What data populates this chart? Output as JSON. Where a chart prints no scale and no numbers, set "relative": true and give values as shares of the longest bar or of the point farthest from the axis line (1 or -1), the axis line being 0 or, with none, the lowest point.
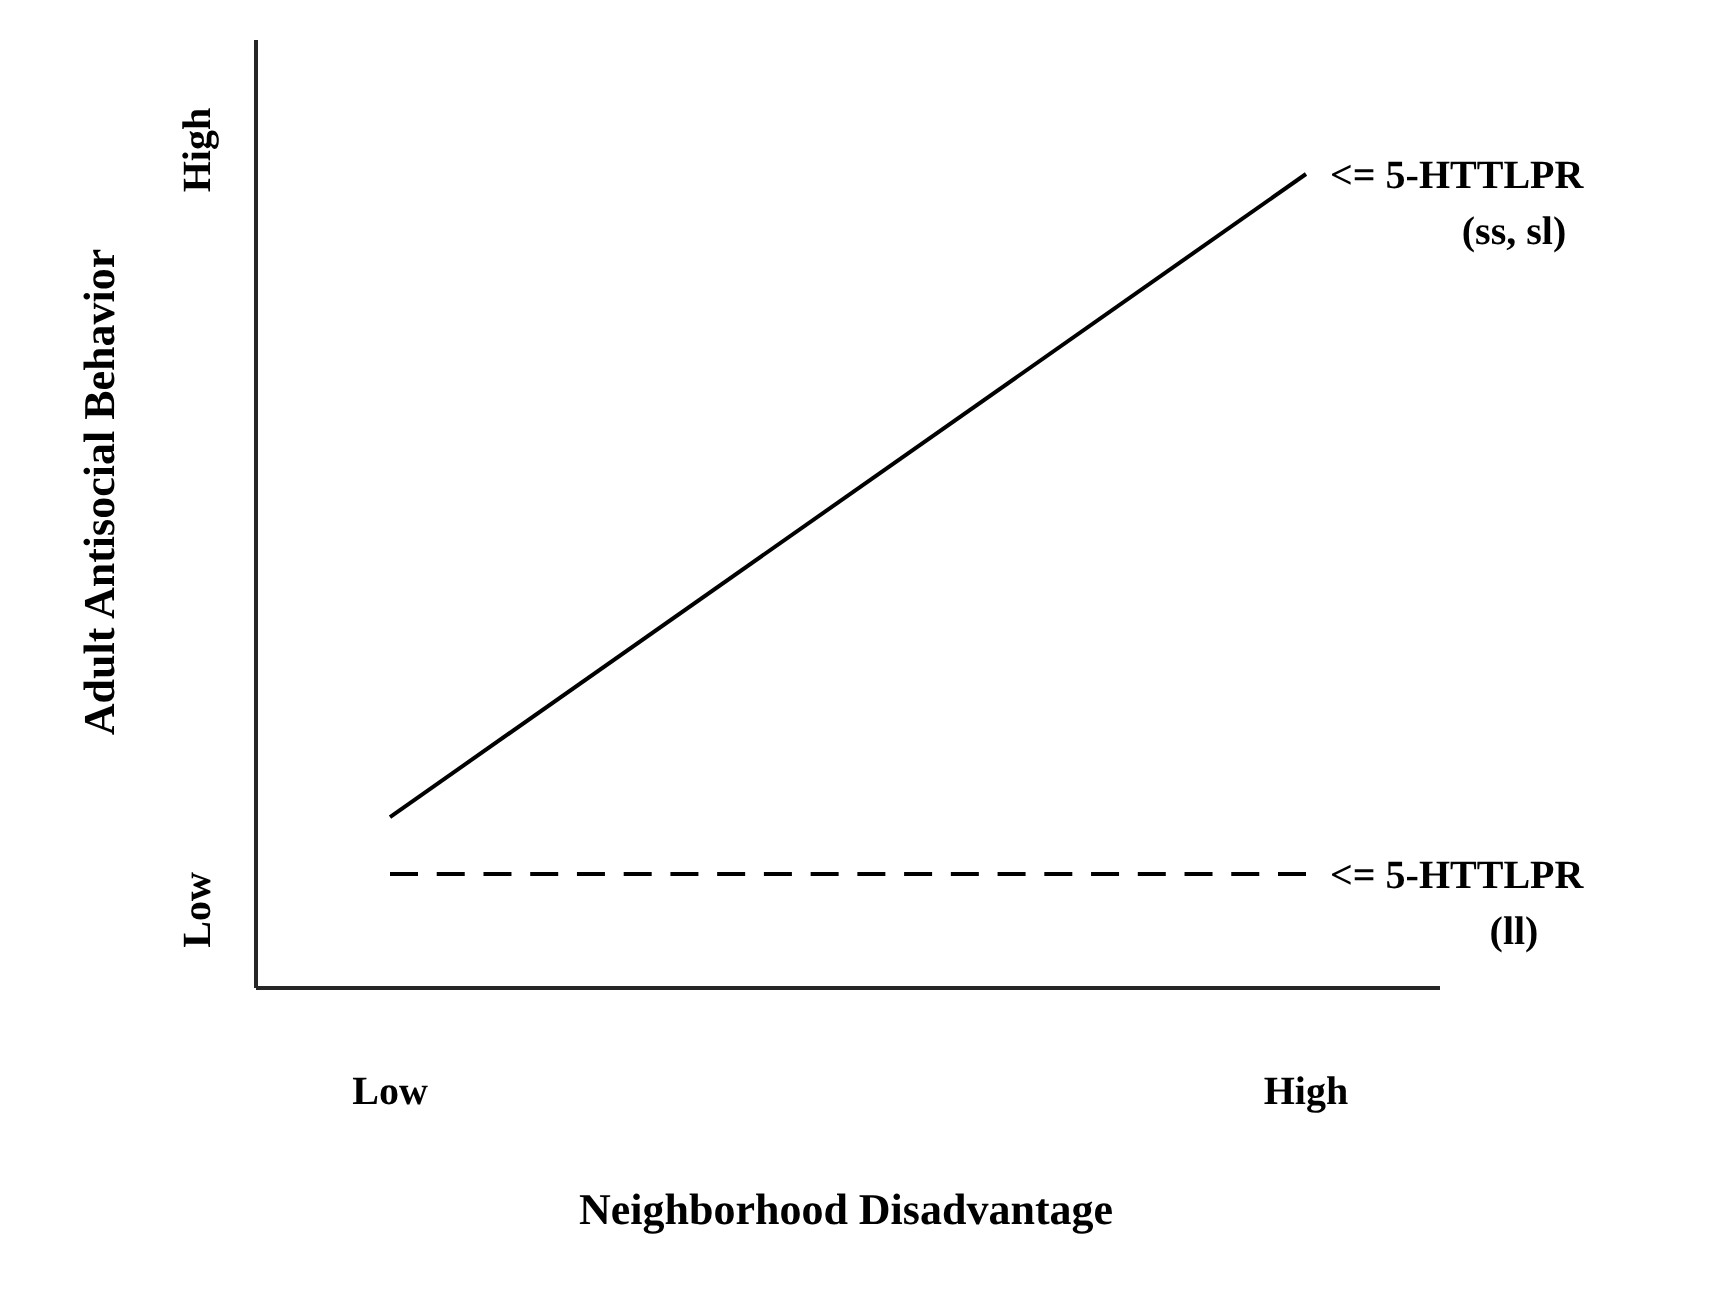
{
  "chart_data": {
    "type": "line",
    "relative": true,
    "xlabel": "Neighborhood Disadvantage",
    "ylabel": "Adult Antisocial Behavior",
    "categories": [
      "Low",
      "High"
    ],
    "annotations": [
      "Low",
      "High"
    ],
    "marker": "none",
    "series": [
      {
        "name": "<= 5-HTTLPR (ss, sl)",
        "color": "#000000",
        "values": [
          0.21,
          1
        ],
        "line_style": "solid"
      },
      {
        "name": "<= 5-HTTLPR (ll)",
        "color": "#000000",
        "values": [
          0.14,
          0.14
        ],
        "line_style": "dashed"
      }
    ]
  }
}
